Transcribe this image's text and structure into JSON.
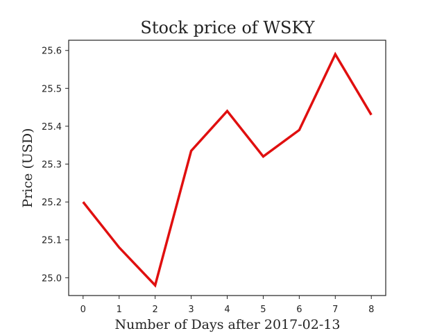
{
  "chart_data": {
    "type": "line",
    "title": "Stock price of WSKY",
    "xlabel": "Number of Days after 2017-02-13",
    "ylabel": "Price (USD)",
    "x": [
      0,
      1,
      2,
      3,
      4,
      5,
      6,
      7,
      8
    ],
    "xlim": [
      -0.4,
      8.4
    ],
    "ylim": [
      24.953,
      25.627
    ],
    "xticks": [
      0,
      1,
      2,
      3,
      4,
      5,
      6,
      7,
      8
    ],
    "yticks": [
      25.0,
      25.1,
      25.2,
      25.3,
      25.4,
      25.5,
      25.6
    ],
    "grid": false,
    "series": [
      {
        "values": [
          25.2,
          25.08,
          24.98,
          25.335,
          25.44,
          25.32,
          25.39,
          25.59,
          25.43
        ],
        "color": "#e00f0f"
      }
    ]
  }
}
